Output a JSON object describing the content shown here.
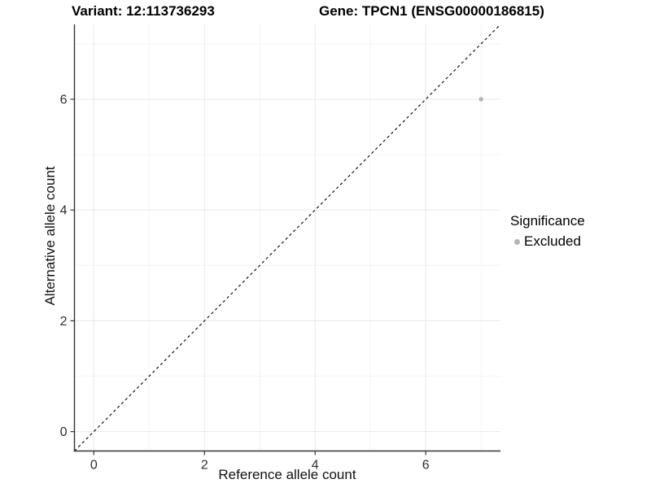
{
  "header": {
    "variant_title": "Variant: 12:113736293",
    "gene_title": "Gene: TPCN1 (ENSG00000186815)"
  },
  "legend": {
    "title": "Significance",
    "items": [
      {
        "label": "Excluded",
        "marker": "circle",
        "color": "#b3b3b3"
      }
    ]
  },
  "chart_data": {
    "type": "scatter",
    "title": "Variant: 12:113736293 / Gene: TPCN1 (ENSG00000186815)",
    "xlabel": "Reference allele count",
    "ylabel": "Alternative allele count",
    "xlim": [
      -0.35,
      7.35
    ],
    "ylim": [
      -0.35,
      7.35
    ],
    "x_ticks": [
      0,
      2,
      4,
      6
    ],
    "y_ticks": [
      0,
      2,
      4,
      6
    ],
    "x_minor_ticks": [
      1,
      3,
      5,
      7
    ],
    "y_minor_ticks": [
      1,
      3,
      5,
      7
    ],
    "grid": true,
    "legend_position": "right",
    "series": [
      {
        "name": "Excluded",
        "color": "#b3b3b3",
        "points": [
          {
            "x": 7,
            "y": 6
          }
        ]
      }
    ],
    "reference_line": {
      "kind": "identity",
      "equation": "y = x",
      "style": "dashed",
      "color": "#000000"
    }
  },
  "colors": {
    "background": "#ffffff",
    "axis_line": "#333333",
    "tick_text": "#2e2e2e",
    "grid_major": "#e8e8e8",
    "grid_minor": "#f4f4f4",
    "point": "#b3b3b3",
    "dashed_line": "#000000"
  }
}
